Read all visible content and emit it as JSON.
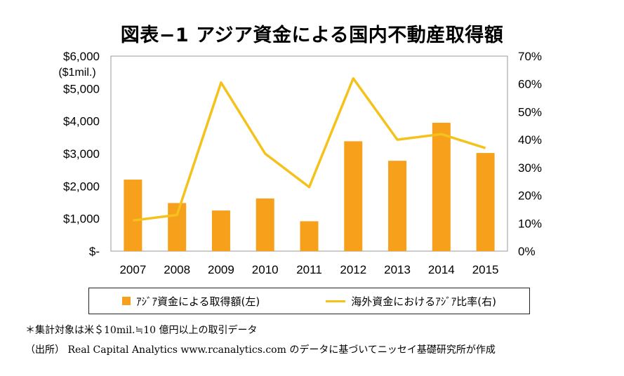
{
  "title": "図表−1 アジア資金による国内不動産取得額",
  "chart_data": {
    "type": "bar",
    "categories": [
      "2007",
      "2008",
      "2009",
      "2010",
      "2011",
      "2012",
      "2013",
      "2014",
      "2015"
    ],
    "series": [
      {
        "name": "ｱｼﾞｱ資金による取得額(左)",
        "type": "bar",
        "axis": "left",
        "values": [
          2200,
          1480,
          1250,
          1620,
          920,
          3380,
          2780,
          3950,
          3020
        ]
      },
      {
        "name": "海外資金におけるｱｼﾞｱ比率(右)",
        "type": "line",
        "axis": "right",
        "values": [
          11,
          13,
          60.5,
          35,
          23,
          62,
          40,
          42,
          37
        ]
      }
    ],
    "left_axis": {
      "unit_label": "($1mil.)",
      "ylim": [
        0,
        6000
      ],
      "ticks": [
        "$-",
        "$1,000",
        "$2,000",
        "$3,000",
        "$4,000",
        "$5,000",
        "$6,000"
      ]
    },
    "right_axis": {
      "ylim": [
        0,
        70
      ],
      "ticks": [
        "0%",
        "10%",
        "20%",
        "30%",
        "40%",
        "50%",
        "60%",
        "70%"
      ]
    },
    "grid": false,
    "legend_position": "bottom",
    "colors": {
      "bar": "#f7a01b",
      "line": "#f5c21c"
    }
  },
  "note": "＊集計対象は米＄10mil.≒10 億円以上の取引データ",
  "source": "（出所） Real Capital Analytics www.rcanalytics.com のデータに基づいてニッセイ基礎研究所が作成"
}
